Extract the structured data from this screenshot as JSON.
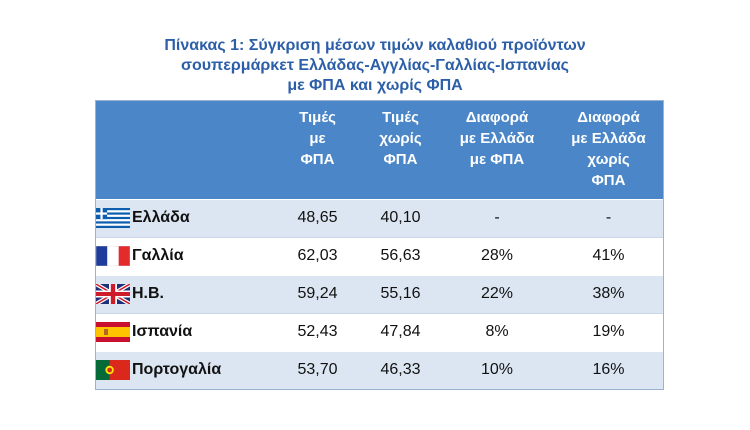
{
  "title": {
    "line1": "Πίνακας 1: Σύγκριση μέσων τιμών καλαθιού προϊόντων",
    "line2": "σουπερμάρκετ Ελλάδας-Αγγλίας-Γαλλίας-Ισπανίας",
    "line3": "με ΦΠΑ και χωρίς ΦΠΑ"
  },
  "table": {
    "headers": {
      "country": "",
      "with_vat": [
        "Τιμές",
        "με",
        "ΦΠΑ"
      ],
      "without_vat": [
        "Τιμές",
        "χωρίς",
        "ΦΠΑ"
      ],
      "diff_with_vat": [
        "Διαφορά",
        "με Ελλάδα",
        "με ΦΠΑ"
      ],
      "diff_without_vat": [
        "Διαφορά",
        "με Ελλάδα",
        "χωρίς",
        "ΦΠΑ"
      ]
    },
    "rows": [
      {
        "country": "Ελλάδα",
        "flag_icon": "greece-flag-icon",
        "with_vat": "48,65",
        "without_vat": "40,10",
        "diff_with_vat": "-",
        "diff_without_vat": "-"
      },
      {
        "country": "Γαλλία",
        "flag_icon": "france-flag-icon",
        "with_vat": "62,03",
        "without_vat": "56,63",
        "diff_with_vat": "28%",
        "diff_without_vat": "41%"
      },
      {
        "country": "Η.Β.",
        "flag_icon": "uk-flag-icon",
        "with_vat": "59,24",
        "without_vat": "55,16",
        "diff_with_vat": "22%",
        "diff_without_vat": "38%"
      },
      {
        "country": "Ισπανία",
        "flag_icon": "spain-flag-icon",
        "with_vat": "52,43",
        "without_vat": "47,84",
        "diff_with_vat": "8%",
        "diff_without_vat": "19%"
      },
      {
        "country": "Πορτογαλία",
        "flag_icon": "portugal-flag-icon",
        "with_vat": "53,70",
        "without_vat": "46,33",
        "diff_with_vat": "10%",
        "diff_without_vat": "16%"
      }
    ]
  },
  "colors": {
    "title": "#2c5fa8",
    "header_bg": "#4a86c8",
    "header_text": "#ffffff",
    "row_alt_bg": "#dce6f2"
  }
}
